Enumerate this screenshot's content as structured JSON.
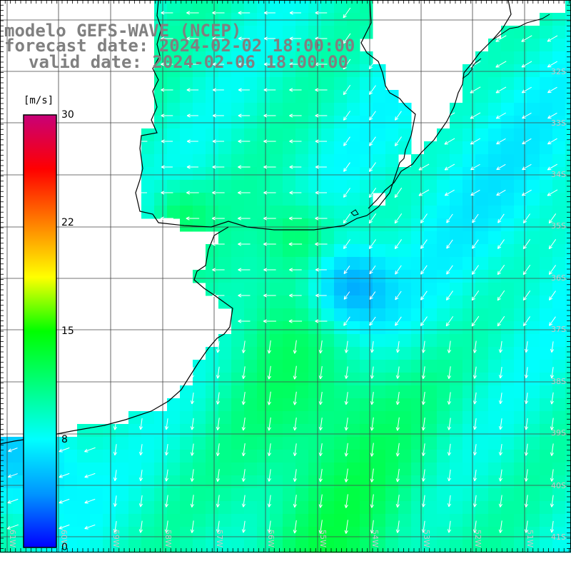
{
  "title": {
    "model": "modelo GEFS-WAVE (NCEP)",
    "forecast": "forecast date: 2024-02-02 18:00:00",
    "valid": "valid date: 2024-02-06 18:00:00"
  },
  "colorbar": {
    "unit": "[m/s]",
    "min": 0,
    "max": 30,
    "ticks": [
      "30",
      "22",
      "15",
      "8",
      "0"
    ],
    "tick_values": [
      30,
      22.5,
      15,
      7.5,
      0
    ],
    "colors": [
      "#0000ff",
      "#0096ff",
      "#00ffff",
      "#00ff7f",
      "#00ff00",
      "#ffff00",
      "#ff8000",
      "#ff0000",
      "#c80078"
    ]
  },
  "axes": {
    "lat_labels": [
      "32S",
      "33S",
      "34S",
      "35S",
      "36S",
      "37S",
      "38S",
      "39S",
      "40S",
      "41S"
    ],
    "lon_labels": [
      "61W",
      "60W",
      "59W",
      "58W",
      "57W",
      "56W",
      "55W",
      "54W",
      "53W",
      "52W",
      "51W"
    ]
  },
  "colors": {
    "grid": "#444444",
    "coast": "#000000",
    "arrow": "#ffffff",
    "label": "#808080",
    "land": "#ffffff"
  }
}
